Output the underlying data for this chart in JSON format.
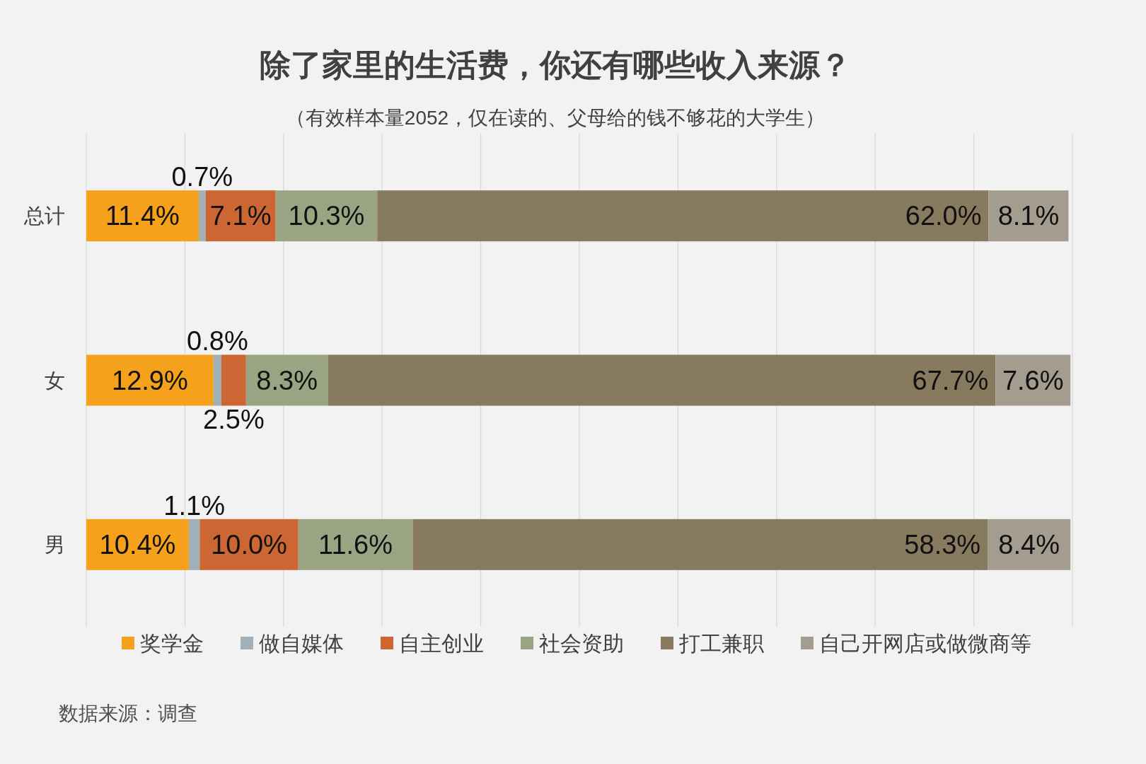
{
  "chart_data": {
    "type": "bar",
    "orientation": "horizontal",
    "stacked": true,
    "title": "除了家里的生活费，你还有哪些收入来源？",
    "subtitle": "（有效样本量2052，仅在读的、父母给的钱不够花的大学生）",
    "categories": [
      "总计",
      "女",
      "男"
    ],
    "series": [
      {
        "name": "奖学金",
        "color": "#f5a11c",
        "values": [
          11.4,
          12.9,
          10.4
        ],
        "value_labels": [
          "11.4%",
          "12.9%",
          "10.4%"
        ]
      },
      {
        "name": "做自媒体",
        "color": "#9fb1b6",
        "values": [
          0.7,
          0.8,
          1.1
        ],
        "value_labels": [
          "0.7%",
          "0.8%",
          "1.1%"
        ]
      },
      {
        "name": "自主创业",
        "color": "#cc6633",
        "values": [
          7.1,
          2.5,
          10.0
        ],
        "value_labels": [
          "7.1%",
          "2.5%",
          "10.0%"
        ]
      },
      {
        "name": "社会资助",
        "color": "#9aa482",
        "values": [
          10.3,
          8.3,
          11.6
        ],
        "value_labels": [
          "10.3%",
          "8.3%",
          "11.6%"
        ]
      },
      {
        "name": "打工兼职",
        "color": "#877a5e",
        "values": [
          62.0,
          67.7,
          58.3
        ],
        "value_labels": [
          "62.0%",
          "67.7%",
          "58.3%"
        ]
      },
      {
        "name": "自己开网店或做微商等",
        "color": "#a59c90",
        "values": [
          8.1,
          7.6,
          8.4
        ],
        "value_labels": [
          "8.1%",
          "7.6%",
          "8.4%"
        ]
      }
    ],
    "xlim": [
      0,
      100
    ],
    "xticks": [
      {
        "value": 0,
        "label": null
      },
      {
        "value": 10,
        "label": null
      },
      {
        "value": 20,
        "label": null
      },
      {
        "value": 30,
        "label": null
      },
      {
        "value": 40,
        "label": null
      },
      {
        "value": 50,
        "label": null
      },
      {
        "value": 60,
        "label": null
      },
      {
        "value": 70,
        "label": null
      },
      {
        "value": 80,
        "label": null
      },
      {
        "value": 90,
        "label": null
      },
      {
        "value": 100,
        "label": null
      }
    ],
    "grid": "x",
    "tick_labels": "y",
    "legend": "bottom",
    "annotations": [
      "数据来源：调查"
    ]
  }
}
